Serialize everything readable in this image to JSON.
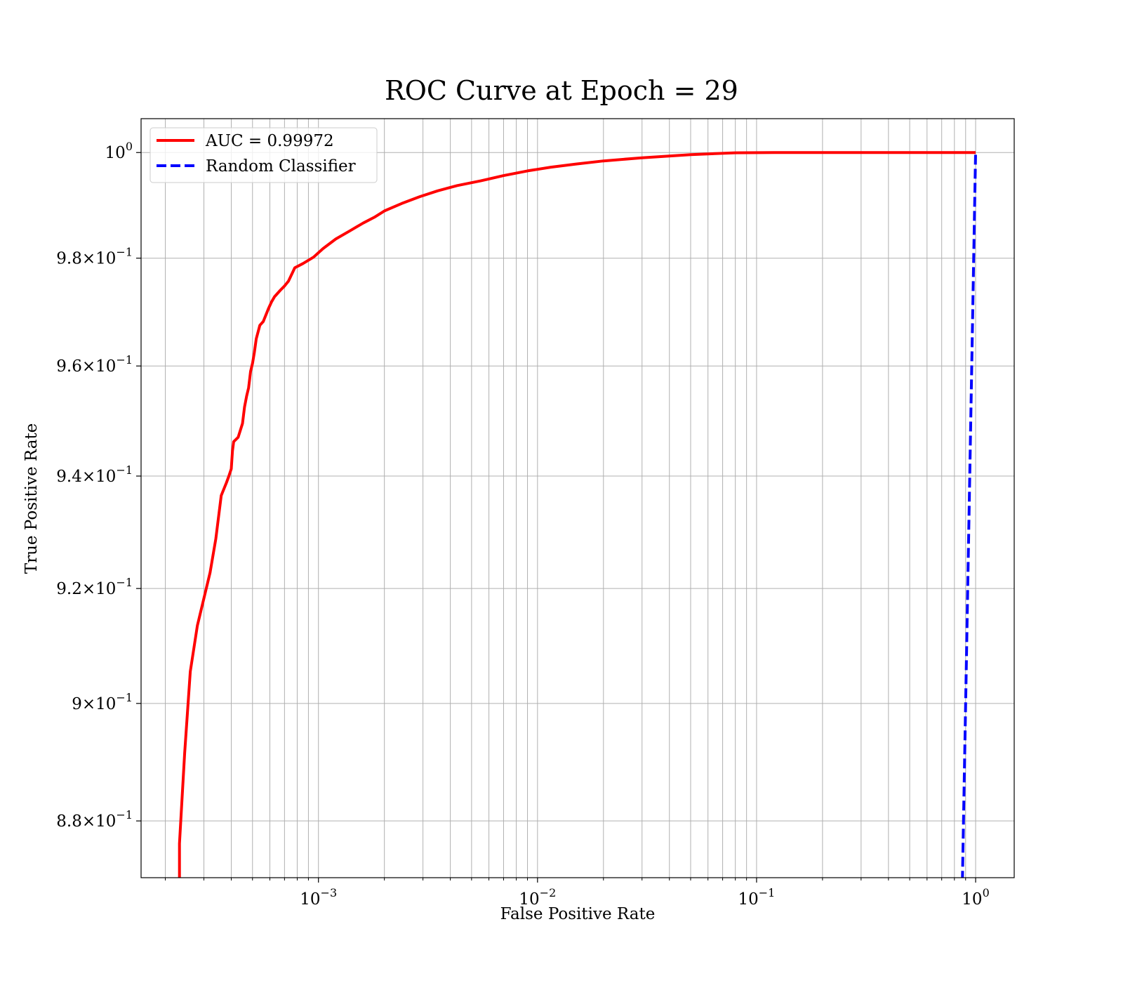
{
  "chart_data": {
    "type": "line",
    "title": "ROC Curve at Epoch = 29",
    "xlabel": "False Positive Rate",
    "ylabel": "True Positive Rate",
    "xscale": "log",
    "yscale": "log",
    "xlim": [
      0.000155,
      1.5
    ],
    "ylim": [
      0.8705,
      1.0065
    ],
    "grid": true,
    "legend_position": "upper-left",
    "x_ticks": [
      {
        "mantissa": "",
        "base": "10",
        "exp": "−3",
        "value": 0.001
      },
      {
        "mantissa": "",
        "base": "10",
        "exp": "−2",
        "value": 0.01
      },
      {
        "mantissa": "",
        "base": "10",
        "exp": "−1",
        "value": 0.1
      },
      {
        "mantissa": "",
        "base": "10",
        "exp": "0",
        "value": 1
      }
    ],
    "y_ticks": [
      {
        "mantissa": "",
        "base": "10",
        "exp": "0",
        "value": 1.0
      },
      {
        "mantissa": "9.8×",
        "base": "10",
        "exp": "−1",
        "value": 0.98
      },
      {
        "mantissa": "9.6×",
        "base": "10",
        "exp": "−1",
        "value": 0.96
      },
      {
        "mantissa": "9.4×",
        "base": "10",
        "exp": "−1",
        "value": 0.94
      },
      {
        "mantissa": "9.2×",
        "base": "10",
        "exp": "−1",
        "value": 0.92
      },
      {
        "mantissa": "9×",
        "base": "10",
        "exp": "−1",
        "value": 0.9
      },
      {
        "mantissa": "8.8×",
        "base": "10",
        "exp": "−1",
        "value": 0.88
      }
    ],
    "series": [
      {
        "name": "AUC = 0.99972",
        "color": "#ff0000",
        "style": "solid",
        "x": [
          0.000232,
          0.000232,
          0.000245,
          0.00026,
          0.00028,
          0.00032,
          0.00034,
          0.000345,
          0.00036,
          0.00038,
          0.00039,
          0.0004,
          0.000405,
          0.00041,
          0.00043,
          0.00045,
          0.00046,
          0.00047,
          0.00048,
          0.00049,
          0.0005,
          0.00051,
          0.00052,
          0.00054,
          0.00056,
          0.00059,
          0.00061,
          0.00063,
          0.00067,
          0.0007,
          0.00073,
          0.00078,
          0.00085,
          0.00095,
          0.00105,
          0.0012,
          0.0014,
          0.0016,
          0.0018,
          0.002,
          0.0024,
          0.0029,
          0.0035,
          0.0043,
          0.0055,
          0.007,
          0.009,
          0.0115,
          0.015,
          0.02,
          0.03,
          0.05,
          0.08,
          0.12,
          0.2,
          0.4,
          1.0
        ],
        "y": [
          0.87,
          0.8762,
          0.8915,
          0.9055,
          0.9135,
          0.9228,
          0.9288,
          0.9308,
          0.9365,
          0.9388,
          0.94,
          0.9413,
          0.9445,
          0.9462,
          0.947,
          0.9495,
          0.9525,
          0.9545,
          0.956,
          0.959,
          0.9605,
          0.9625,
          0.965,
          0.9675,
          0.9682,
          0.9705,
          0.9718,
          0.9728,
          0.974,
          0.9748,
          0.9757,
          0.9782,
          0.979,
          0.9802,
          0.9818,
          0.9836,
          0.9852,
          0.9866,
          0.9877,
          0.9889,
          0.9903,
          0.9916,
          0.9927,
          0.9937,
          0.9946,
          0.9956,
          0.9965,
          0.9972,
          0.9978,
          0.9984,
          0.999,
          0.9996,
          0.99995,
          1.0,
          1.0,
          1.0,
          1.0
        ]
      },
      {
        "name": "Random Classifier",
        "color": "#0000ff",
        "style": "dashed",
        "x": [
          0.87,
          0.9,
          0.93,
          0.96,
          1.0
        ],
        "y": [
          0.87,
          0.9,
          0.93,
          0.96,
          1.0
        ]
      }
    ]
  }
}
